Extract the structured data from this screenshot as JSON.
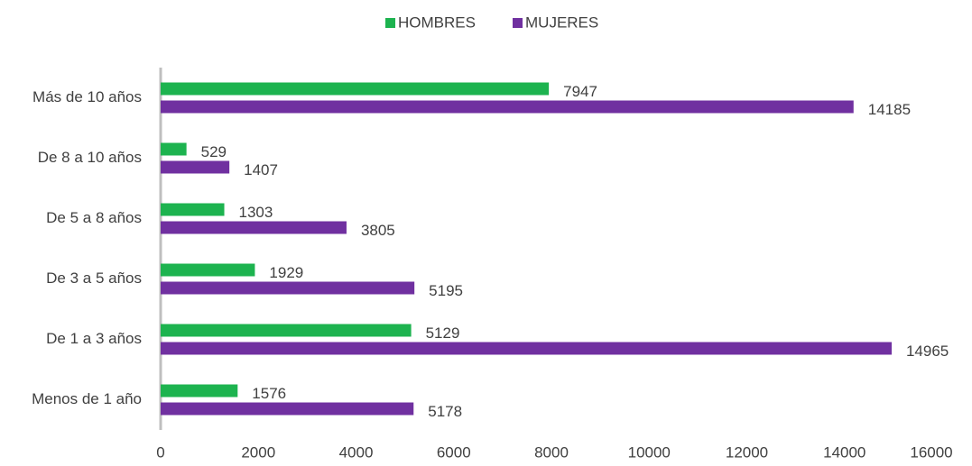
{
  "chart_data": {
    "type": "bar",
    "orientation": "horizontal",
    "categories": [
      "Más de 10 años",
      "De 8 a 10 años",
      "De 5 a 8 años",
      "De 3 a 5 años",
      "De 1 a 3 años",
      "Menos de 1 año"
    ],
    "series": [
      {
        "name": "HOMBRES",
        "color": "#1db34f",
        "values": [
          7947,
          529,
          1303,
          1929,
          5129,
          1576
        ]
      },
      {
        "name": "MUJERES",
        "color": "#7030a0",
        "values": [
          14185,
          1407,
          3805,
          5195,
          14965,
          5178
        ]
      }
    ],
    "xlim": [
      0,
      16000
    ],
    "xticks": [
      0,
      2000,
      4000,
      6000,
      8000,
      10000,
      12000,
      14000,
      16000
    ],
    "grid": false
  }
}
